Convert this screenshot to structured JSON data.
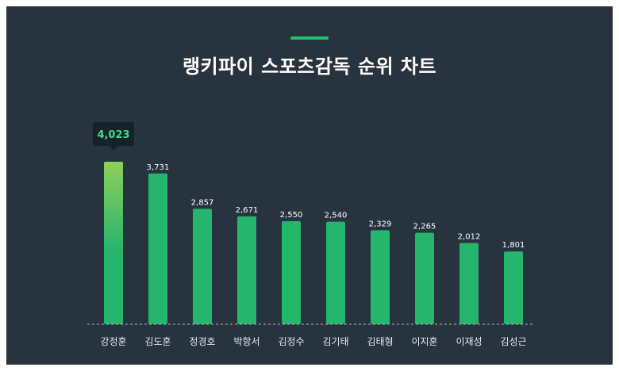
{
  "header": {
    "title": "랭키파이 스포츠감독 순위 차트"
  },
  "colors": {
    "background": "#27343f",
    "bar": "#26b56d",
    "bar_highlight_top": "#8fd05a",
    "accent": "#22c06c",
    "tooltip_bg": "#17212a",
    "tooltip_text": "#3ddc84"
  },
  "chart_data": {
    "type": "bar",
    "title": "랭키파이 스포츠감독 순위 차트",
    "categories": [
      "강정훈",
      "김도훈",
      "정경호",
      "박항서",
      "김정수",
      "김기태",
      "김태형",
      "이지훈",
      "이재성",
      "김성근"
    ],
    "values": [
      4023,
      3731,
      2857,
      2671,
      2550,
      2540,
      2329,
      2265,
      2012,
      1801
    ],
    "value_labels": [
      "4,023",
      "3,731",
      "2,857",
      "2,671",
      "2,550",
      "2,540",
      "2,329",
      "2,265",
      "2,012",
      "1,801"
    ],
    "highlight_index": 0,
    "ylim": [
      0,
      4023
    ],
    "grid": false,
    "baseline": "dashed"
  }
}
